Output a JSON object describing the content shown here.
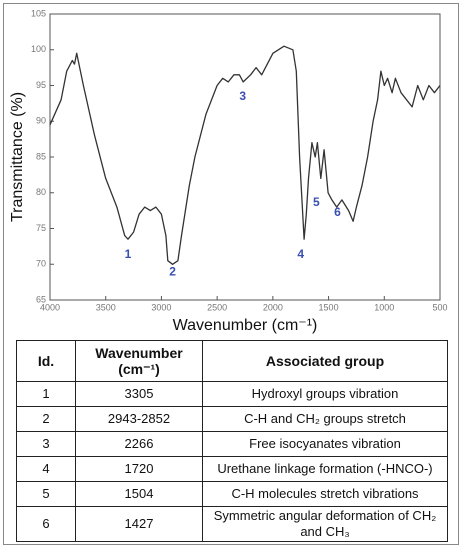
{
  "chart_data": {
    "type": "line",
    "xlabel": "Wavenumber (cm⁻¹)",
    "ylabel": "Transmittance (%)",
    "x": [
      4000,
      3900,
      3850,
      3800,
      3780,
      3760,
      3700,
      3600,
      3500,
      3400,
      3330,
      3300,
      3250,
      3200,
      3150,
      3100,
      3050,
      3000,
      2960,
      2943,
      2900,
      2852,
      2820,
      2750,
      2700,
      2600,
      2500,
      2450,
      2400,
      2350,
      2300,
      2266,
      2200,
      2150,
      2100,
      2050,
      2000,
      1900,
      1820,
      1790,
      1760,
      1720,
      1700,
      1680,
      1650,
      1620,
      1600,
      1570,
      1540,
      1504,
      1470,
      1427,
      1380,
      1320,
      1280,
      1250,
      1200,
      1150,
      1100,
      1060,
      1030,
      1000,
      970,
      930,
      900,
      850,
      800,
      750,
      700,
      650,
      600,
      550,
      500
    ],
    "values": [
      89.5,
      93,
      97,
      98.5,
      98,
      99.5,
      95,
      88,
      82,
      78,
      74,
      73.5,
      74.5,
      77,
      78,
      77.5,
      78,
      77,
      74,
      70.5,
      70,
      70.5,
      74,
      81,
      85,
      91,
      95,
      96,
      95.5,
      96.5,
      96.5,
      95.5,
      96.5,
      97.5,
      96.5,
      98,
      99.5,
      100.5,
      100,
      97,
      85,
      73.5,
      77,
      82,
      87,
      85,
      87,
      82,
      86,
      80,
      79,
      78,
      79,
      77.5,
      76,
      78,
      81,
      85,
      90,
      93,
      97,
      95,
      96,
      94,
      96,
      94,
      93,
      92,
      95,
      93,
      95,
      94,
      95
    ],
    "color": "#333333",
    "xlim": [
      4000,
      500
    ],
    "xticks": [
      4000,
      3500,
      3000,
      2500,
      2000,
      1500,
      1000,
      500
    ],
    "ylim": [
      65,
      105
    ],
    "yticks": [
      65,
      70,
      75,
      80,
      85,
      90,
      95,
      100,
      105
    ],
    "grid": false,
    "annotations": [
      {
        "text": "1",
        "x": 3300,
        "y": 71.3
      },
      {
        "text": "2",
        "x": 2900,
        "y": 68.9
      },
      {
        "text": "3",
        "x": 2270,
        "y": 93.4
      },
      {
        "text": "4",
        "x": 1750,
        "y": 71.3
      },
      {
        "text": "5",
        "x": 1610,
        "y": 78.6
      },
      {
        "text": "6",
        "x": 1420,
        "y": 77.2
      }
    ]
  },
  "table": {
    "header": [
      "Id.",
      "Wavenumber (cm⁻¹)",
      "Associated group"
    ],
    "rows": [
      [
        "1",
        "3305",
        "Hydroxyl groups vibration"
      ],
      [
        "2",
        "2943-2852",
        "C-H and CH₂ groups stretch"
      ],
      [
        "3",
        "2266",
        "Free isocyanates vibration"
      ],
      [
        "4",
        "1720",
        "Urethane linkage formation (-HNCO-)"
      ],
      [
        "5",
        "1504",
        "C-H molecules stretch vibrations"
      ],
      [
        "6",
        "1427",
        "Symmetric angular deformation of CH₂ and CH₃"
      ]
    ]
  }
}
